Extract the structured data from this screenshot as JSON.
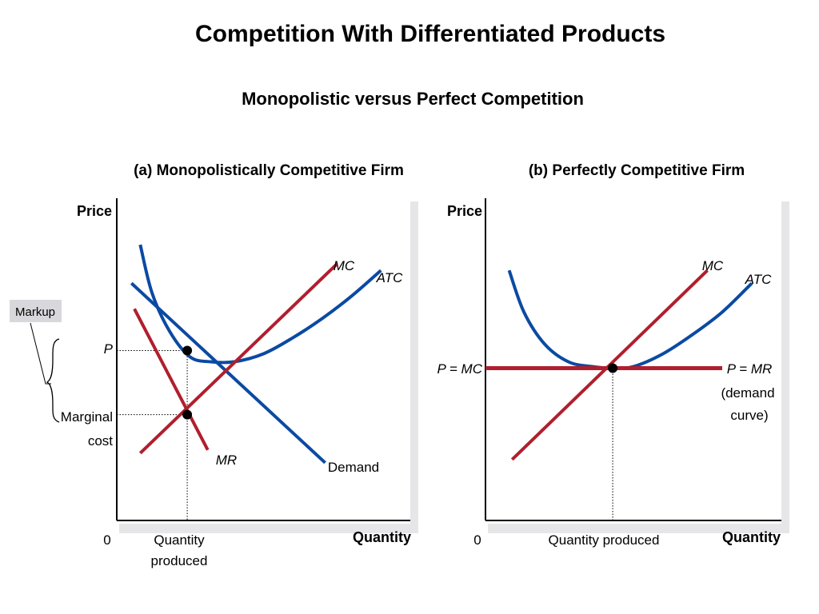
{
  "slide": {
    "title": "Competition With Differentiated Products",
    "subtitle": "Monopolistic versus Perfect Competition"
  },
  "chart_data": [
    {
      "type": "line",
      "title": "(a) Monopolistically Competitive Firm",
      "ylabel": "Price",
      "xlabel": "Quantity",
      "origin_label": "0",
      "xlim": [
        0,
        10
      ],
      "ylim": [
        0,
        10
      ],
      "series": [
        {
          "name": "MC",
          "label": "MC",
          "color": "#b01f2e",
          "x": [
            0.8,
            7.5
          ],
          "y": [
            2.1,
            8.0
          ]
        },
        {
          "name": "ATC",
          "label": "ATC",
          "color": "#0b4aa2",
          "x": [
            0.8,
            1.2,
            1.8,
            2.5,
            3.2,
            4.0,
            5.0,
            6.0,
            7.0,
            8.0,
            9.0
          ],
          "y": [
            8.6,
            7.1,
            5.9,
            5.1,
            4.95,
            4.95,
            5.2,
            5.7,
            6.3,
            7.0,
            7.8
          ]
        },
        {
          "name": "Demand",
          "label": "Demand",
          "color": "#0b4aa2",
          "x": [
            0.5,
            7.1
          ],
          "y": [
            7.4,
            1.8
          ]
        },
        {
          "name": "MR",
          "label": "MR",
          "color": "#b01f2e",
          "x": [
            0.6,
            3.1
          ],
          "y": [
            6.6,
            2.2
          ]
        }
      ],
      "points": [
        {
          "name": "equilibrium-price",
          "x": 2.4,
          "y": 5.3
        },
        {
          "name": "equilibrium-cost",
          "x": 2.4,
          "y": 3.3
        }
      ],
      "annotations": {
        "p_label": "P",
        "marginal_cost_label_line1": "Marginal",
        "marginal_cost_label_line2": "cost",
        "quantity_produced_line1": "Quantity",
        "quantity_produced_line2": "produced",
        "markup_label": "Markup"
      }
    },
    {
      "type": "line",
      "title": "(b) Perfectly Competitive Firm",
      "ylabel": "Price",
      "xlabel": "Quantity",
      "origin_label": "0",
      "xlim": [
        0,
        10
      ],
      "ylim": [
        0,
        10
      ],
      "series": [
        {
          "name": "MC",
          "label": "MC",
          "color": "#b01f2e",
          "x": [
            0.9,
            7.5
          ],
          "y": [
            1.9,
            7.8
          ]
        },
        {
          "name": "ATC",
          "label": "ATC",
          "color": "#0b4aa2",
          "x": [
            0.8,
            1.3,
            2.0,
            2.8,
            3.6,
            4.3,
            5.0,
            6.0,
            7.0,
            8.0,
            9.0
          ],
          "y": [
            7.8,
            6.5,
            5.5,
            4.95,
            4.8,
            4.75,
            4.8,
            5.2,
            5.8,
            6.5,
            7.4
          ]
        },
        {
          "name": "P = MR",
          "label": "P = MR",
          "color": "#b01f2e",
          "x": [
            0.0,
            8.0
          ],
          "y": [
            4.75,
            4.75
          ]
        }
      ],
      "points": [
        {
          "name": "equilibrium",
          "x": 4.3,
          "y": 4.75
        }
      ],
      "annotations": {
        "p_mc_label": "P = MC",
        "demand_curve_line1": "(demand",
        "demand_curve_line2": "curve)",
        "quantity_produced": "Quantity produced"
      }
    }
  ]
}
